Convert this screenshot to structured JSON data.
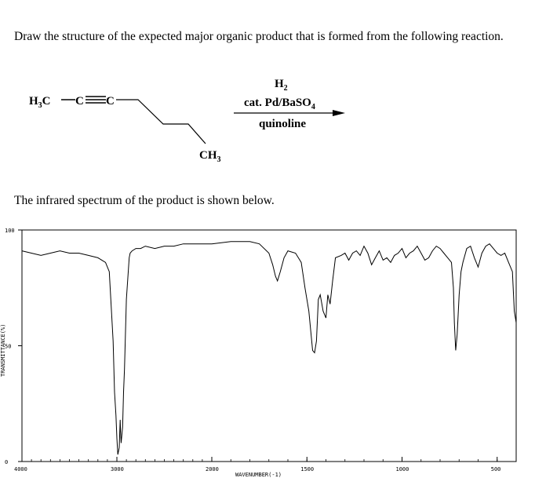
{
  "question": {
    "text": "Draw the structure of the expected major organic product that is formed from the following reaction."
  },
  "reaction": {
    "reactant": {
      "left_group": "H",
      "left_group_sub": "3",
      "left_group_tail": "C",
      "triple_bond_carbon": "C",
      "triple_bond_carbon_2": "C",
      "bottom_group": "CH",
      "bottom_group_sub": "3"
    },
    "reagents": {
      "above_arrow": "H",
      "above_arrow_sub": "2",
      "catalyst_main": "cat. Pd/BaSO",
      "catalyst_sub": "4",
      "below_arrow": "quinoline"
    }
  },
  "ir_intro": {
    "text": "The infrared spectrum of the product is shown below."
  },
  "chart_data": {
    "type": "line",
    "title": "",
    "xlabel": "WAVENUMBER(-1)",
    "ylabel": "TRANSMITTANCE(%)",
    "xlim": [
      4000,
      400
    ],
    "ylim": [
      0,
      100
    ],
    "x_ticks": [
      4000,
      3000,
      2000,
      1500,
      1000,
      500
    ],
    "x_tick_labels": [
      "4000",
      "3000",
      "2000",
      "1500",
      "1000",
      "500"
    ],
    "y_ticks": [
      0,
      50,
      100
    ],
    "y_tick_labels": [
      "0",
      "50",
      "100"
    ],
    "series": [
      {
        "x": [
          4000,
          3900,
          3800,
          3700,
          3600,
          3500,
          3400,
          3300,
          3200,
          3120,
          3080,
          3050,
          3040,
          3025,
          3010,
          3000,
          2990,
          2975,
          2965,
          2960,
          2955,
          2940,
          2930,
          2920,
          2900,
          2880,
          2870,
          2860,
          2840,
          2800,
          2750,
          2700,
          2600,
          2500,
          2400,
          2300,
          2200,
          2100,
          2000,
          1900,
          1800,
          1750,
          1700,
          1680,
          1665,
          1655,
          1640,
          1620,
          1600,
          1560,
          1530,
          1510,
          1490,
          1470,
          1460,
          1450,
          1440,
          1430,
          1415,
          1400,
          1390,
          1378,
          1365,
          1350,
          1320,
          1300,
          1280,
          1260,
          1240,
          1220,
          1200,
          1180,
          1160,
          1140,
          1120,
          1100,
          1080,
          1060,
          1040,
          1020,
          1000,
          980,
          960,
          940,
          920,
          900,
          880,
          860,
          840,
          820,
          800,
          780,
          760,
          740,
          730,
          725,
          718,
          710,
          700,
          690,
          680,
          660,
          640,
          620,
          600,
          580,
          560,
          540,
          520,
          500,
          480,
          460,
          440,
          420,
          410,
          400
        ],
        "y": [
          91,
          90,
          89,
          90,
          91,
          90,
          90,
          89,
          88,
          86,
          82,
          60,
          52,
          30,
          20,
          10,
          3,
          6,
          18,
          12,
          8,
          15,
          30,
          40,
          70,
          82,
          88,
          90,
          91,
          92,
          92,
          93,
          92,
          93,
          93,
          94,
          94,
          94,
          94,
          95,
          95,
          94,
          90,
          85,
          80,
          78,
          82,
          88,
          91,
          90,
          86,
          75,
          65,
          48,
          47,
          52,
          70,
          72,
          65,
          62,
          72,
          68,
          78,
          88,
          89,
          90,
          87,
          90,
          91,
          89,
          93,
          90,
          85,
          88,
          91,
          87,
          88,
          86,
          89,
          90,
          92,
          88,
          90,
          91,
          93,
          90,
          87,
          88,
          91,
          93,
          92,
          90,
          88,
          86,
          75,
          60,
          48,
          55,
          72,
          82,
          86,
          92,
          93,
          88,
          84,
          90,
          93,
          94,
          92,
          90,
          89,
          90,
          86,
          82,
          65,
          60
        ]
      }
    ],
    "grid": false,
    "legend": "none"
  }
}
